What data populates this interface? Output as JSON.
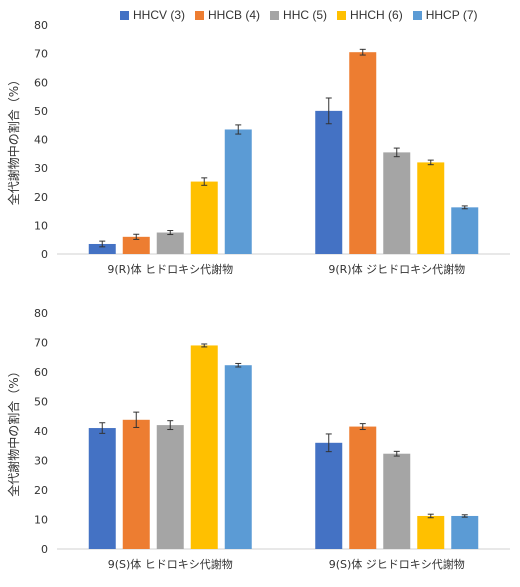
{
  "legend": [
    {
      "label": "HHCV (3)",
      "color": "#4472C4"
    },
    {
      "label": "HHCB (4)",
      "color": "#ED7D31"
    },
    {
      "label": "HHC (5)",
      "color": "#A5A5A5"
    },
    {
      "label": "HHCH (6)",
      "color": "#FFC000"
    },
    {
      "label": "HHCP (7)",
      "color": "#5B9BD5"
    }
  ],
  "chart_data": [
    {
      "type": "bar",
      "ylabel": "全代謝物中の割合（%）",
      "ylim": [
        0,
        80
      ],
      "yticks": [
        0,
        10,
        20,
        30,
        40,
        50,
        60,
        70,
        80
      ],
      "categories": [
        "9(R)体 ヒドロキシ代謝物",
        "9(R)体 ジヒドロキシ代謝物"
      ],
      "series": [
        {
          "name": "HHCV (3)",
          "values": [
            3.5,
            50
          ],
          "errors": [
            1.0,
            4.5
          ]
        },
        {
          "name": "HHCB (4)",
          "values": [
            6,
            70.5
          ],
          "errors": [
            0.9,
            1.0
          ]
        },
        {
          "name": "HHC (5)",
          "values": [
            7.5,
            35.5
          ],
          "errors": [
            0.7,
            1.5
          ]
        },
        {
          "name": "HHCH (6)",
          "values": [
            25.3,
            32
          ],
          "errors": [
            1.3,
            0.8
          ]
        },
        {
          "name": "HHCP (7)",
          "values": [
            43.5,
            16.3
          ],
          "errors": [
            1.6,
            0.5
          ]
        }
      ]
    },
    {
      "type": "bar",
      "ylabel": "全代謝物中の割合（%）",
      "ylim": [
        0,
        80
      ],
      "yticks": [
        0,
        10,
        20,
        30,
        40,
        50,
        60,
        70,
        80
      ],
      "categories": [
        "9(S)体 ヒドロキシ代謝物",
        "9(S)体 ジヒドロキシ代謝物"
      ],
      "series": [
        {
          "name": "HHCV (3)",
          "values": [
            41,
            36
          ],
          "errors": [
            1.8,
            3.0
          ]
        },
        {
          "name": "HHCB (4)",
          "values": [
            43.8,
            41.5
          ],
          "errors": [
            2.6,
            1.0
          ]
        },
        {
          "name": "HHC (5)",
          "values": [
            42,
            32.3
          ],
          "errors": [
            1.5,
            0.8
          ]
        },
        {
          "name": "HHCH (6)",
          "values": [
            69,
            11.2
          ],
          "errors": [
            0.5,
            0.6
          ]
        },
        {
          "name": "HHCP (7)",
          "values": [
            62.3,
            11.2
          ],
          "errors": [
            0.6,
            0.4
          ]
        }
      ]
    }
  ]
}
